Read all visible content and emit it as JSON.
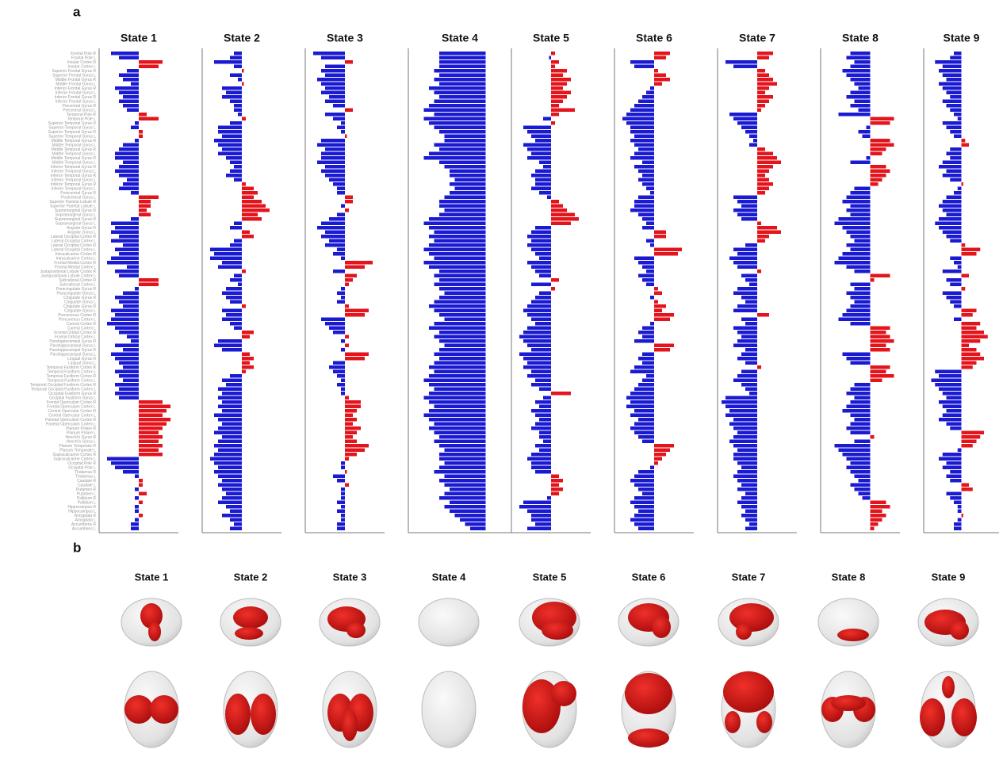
{
  "panel_labels": [
    "a",
    "b"
  ],
  "brain_maps": {
    "titles": [
      "State 1",
      "State 2",
      "State 3",
      "State 4",
      "State 5",
      "State 6",
      "State 7",
      "State 8",
      "State 9"
    ]
  },
  "chart_data": [
    {
      "type": "bar",
      "title": "State 1",
      "xlim": [
        -1,
        1
      ],
      "positive_color": "#e3141b",
      "negative_color": "#1a1ad2",
      "categories": [
        "Frontal Pole R",
        "Frontal Pole L",
        "Insular Cortex R",
        "Insular Cortex L",
        "Superior Frontal Gyrus R",
        "Superior Frontal Gyrus L",
        "Middle Frontal Gyrus R",
        "Middle Frontal Gyrus L",
        "Inferior Frontal Gyrus R",
        "Inferior Frontal Gyrus L",
        "Inferior Frontal Gyrus R",
        "Inferior Frontal Gyrus L",
        "Precentral Gyrus R",
        "Precentral Gyrus L",
        "Temporal Pole R",
        "Temporal Pole L",
        "Superior Temporal Gyrus R",
        "Superior Temporal Gyrus L",
        "Superior Temporal Gyrus R",
        "Superior Temporal Gyrus L",
        "Middle Temporal Gyrus R",
        "Middle Temporal Gyrus L",
        "Middle Temporal Gyrus R",
        "Middle Temporal Gyrus L",
        "Middle Temporal Gyrus R",
        "Middle Temporal Gyrus L",
        "Inferior Temporal Gyrus R",
        "Inferior Temporal Gyrus L",
        "Inferior Temporal Gyrus R",
        "Inferior Temporal Gyrus L",
        "Inferior Temporal Gyrus R",
        "Inferior Temporal Gyrus L",
        "Postcentral Gyrus R",
        "Postcentral Gyrus L",
        "Superior Parietal Lobule R",
        "Superior Parietal Lobule L",
        "Supramarginal Gyrus R",
        "Supramarginal Gyrus L",
        "Supramarginal Gyrus R",
        "Supramarginal Gyrus L",
        "Angular Gyrus R",
        "Angular Gyrus L",
        "Lateral Occipital Cortex R",
        "Lateral Occipital Cortex L",
        "Lateral Occipital Cortex R",
        "Lateral Occipital Cortex L",
        "Intracalcarine Cortex R",
        "Intracalcarine Cortex L",
        "Frontal Medial Cortex R",
        "Frontal Medial Cortex L",
        "Juxtapositional Lobule Cortex R",
        "Juxtapositional Lobule Cortex L",
        "Subcallosal Cortex R",
        "Subcallosal Cortex L",
        "Paracingulate Gyrus R",
        "Paracingulate Gyrus L",
        "Cingulate Gyrus R",
        "Cingulate Gyrus L",
        "Cingulate Gyrus R",
        "Cingulate Gyrus L",
        "Precuneous Cortex R",
        "Precuneous Cortex L",
        "Cuneal Cortex R",
        "Cuneal Cortex L",
        "Frontal Orbital Cortex R",
        "Frontal Orbital Cortex L",
        "Parahippocampal Gyrus R",
        "Parahippocampal Gyrus L",
        "Parahippocampal Gyrus R",
        "Parahippocampal Gyrus L",
        "Lingual Gyrus R",
        "Lingual Gyrus L",
        "Temporal Fusiform Cortex R",
        "Temporal Fusiform Cortex L",
        "Temporal Fusiform Cortex R",
        "Temporal Fusiform Cortex L",
        "Temporal Occipital Fusiform Cortex R",
        "Temporal Occipital Fusiform Cortex L",
        "Occipital Fusiform Gyrus R",
        "Occipital Fusiform Gyrus L",
        "Frontal Operculum Cortex R",
        "Frontal Operculum Cortex L",
        "Central Opercular Cortex R",
        "Central Opercular Cortex L",
        "Parietal Operculum Cortex R",
        "Parietal Operculum Cortex L",
        "Planum Polare R",
        "Planum Polare L",
        "Heschl's Gyrus R",
        "Heschl's Gyrus L",
        "Planum Temporale R",
        "Planum Temporale L",
        "Supracalcarine Cortex R",
        "Supracalcarine Cortex L",
        "Occipital Pole R",
        "Occipital Pole L",
        "Thalamus R",
        "Thalamus L",
        "Caudate R",
        "Caudate L",
        "Putamen R",
        "Putamen L",
        "Pallidum R",
        "Pallidum L",
        "Hippocampus R",
        "Hippocampus L",
        "Amygdala R",
        "Amygdala L",
        "Accumbens R",
        "Accumbens L"
      ],
      "values": [
        -0.7,
        -0.5,
        0.6,
        0.5,
        -0.3,
        -0.5,
        -0.4,
        -0.2,
        -0.6,
        -0.5,
        -0.4,
        -0.5,
        -0.4,
        -0.3,
        0.2,
        0.5,
        -0.1,
        -0.2,
        0.1,
        0.1,
        -0.1,
        -0.4,
        -0.5,
        -0.6,
        -0.6,
        -0.4,
        -0.5,
        -0.6,
        -0.5,
        -0.3,
        -0.4,
        -0.5,
        -0.2,
        0.5,
        0.3,
        0.3,
        0.2,
        0.3,
        -0.2,
        -0.7,
        -0.6,
        -0.7,
        -0.5,
        -0.7,
        -0.4,
        -0.6,
        -0.5,
        -0.7,
        -0.8,
        -0.3,
        -0.6,
        -0.5,
        0.5,
        0.5,
        -0.1,
        -0.4,
        -0.6,
        -0.5,
        -0.4,
        -0.7,
        -0.6,
        -0.7,
        -0.8,
        -0.6,
        -0.5,
        -0.3,
        -0.2,
        -0.6,
        -0.4,
        -0.7,
        -0.6,
        -0.5,
        -0.4,
        -0.6,
        -0.5,
        -0.4,
        -0.6,
        -0.5,
        -0.6,
        -0.5,
        0.6,
        0.8,
        0.7,
        0.6,
        0.8,
        0.7,
        0.6,
        0.5,
        0.6,
        0.5,
        0.6,
        0.5,
        0.6,
        -0.8,
        -0.7,
        -0.6,
        -0.4,
        -0.1,
        0.1,
        0.1,
        -0.1,
        0.2,
        -0.1,
        0.1,
        -0.1,
        -0.1,
        0.1,
        -0.1,
        -0.2,
        -0.2
      ]
    },
    {
      "type": "bar",
      "title": "State 2",
      "xlim": [
        -1,
        1
      ],
      "positive_color": "#e3141b",
      "negative_color": "#1a1ad2",
      "values": [
        -0.2,
        -0.3,
        -0.7,
        -0.2,
        0.05,
        -0.3,
        -0.1,
        0.05,
        -0.5,
        -0.4,
        -0.5,
        -0.3,
        -0.2,
        -0.2,
        -0.1,
        0.1,
        -0.3,
        -0.6,
        -0.6,
        -0.5,
        -0.7,
        -0.6,
        -0.5,
        -0.6,
        -0.4,
        -0.3,
        -0.2,
        -0.3,
        -0.4,
        -0.2,
        0.1,
        0.3,
        0.4,
        0.3,
        0.5,
        0.6,
        0.7,
        0.4,
        0.5,
        -0.2,
        -0.3,
        0.2,
        0.3,
        -0.2,
        -0.3,
        -0.8,
        -0.7,
        -0.8,
        -0.5,
        -0.6,
        0.1,
        -0.2,
        -0.3,
        -0.1,
        -0.4,
        -0.5,
        -0.4,
        -0.3,
        0.1,
        -0.5,
        -0.4,
        -0.5,
        -0.3,
        -0.2,
        0.3,
        0.2,
        -0.6,
        -0.7,
        -0.5,
        0.2,
        0.3,
        0.2,
        0.3,
        0.1,
        -0.3,
        -0.5,
        -0.4,
        -0.6,
        -0.5,
        -0.6,
        -0.5,
        -0.6,
        -0.5,
        -0.7,
        -0.6,
        -0.5,
        -0.6,
        -0.7,
        -0.5,
        -0.6,
        -0.7,
        -0.6,
        -0.7,
        -0.8,
        -0.7,
        -0.6,
        -0.7,
        -0.6,
        -0.5,
        -0.6,
        -0.5,
        -0.4,
        -0.5,
        -0.6,
        -0.4,
        -0.3,
        -0.5,
        -0.3,
        -0.2,
        -0.3
      ]
    },
    {
      "type": "bar",
      "title": "State 3",
      "xlim": [
        -1,
        1
      ],
      "positive_color": "#e3141b",
      "negative_color": "#1a1ad2",
      "values": [
        -0.8,
        -0.6,
        0.2,
        -0.5,
        -0.6,
        -0.5,
        -0.7,
        -0.6,
        -0.5,
        -0.6,
        -0.4,
        -0.5,
        -0.3,
        0.2,
        -0.5,
        -0.3,
        -0.1,
        -0.2,
        -0.1,
        0.05,
        -0.6,
        -0.7,
        -0.5,
        -0.6,
        -0.6,
        -0.7,
        -0.5,
        -0.6,
        -0.5,
        -0.4,
        -0.3,
        -0.2,
        -0.2,
        0.2,
        0.2,
        -0.1,
        0.1,
        -0.2,
        -0.4,
        -0.6,
        -0.7,
        -0.5,
        -0.6,
        -0.4,
        -0.5,
        -0.2,
        -0.3,
        -0.1,
        0.7,
        0.5,
        -0.3,
        0.3,
        0.2,
        0.1,
        -0.1,
        -0.2,
        -0.1,
        -0.2,
        0.1,
        0.6,
        0.5,
        -0.6,
        -0.5,
        -0.4,
        -0.3,
        0.1,
        -0.1,
        0.1,
        -0.1,
        0.6,
        0.5,
        -0.3,
        -0.4,
        -0.3,
        -0.2,
        -0.1,
        -0.2,
        -0.1,
        -0.1,
        0.1,
        0.4,
        0.4,
        0.3,
        0.2,
        0.3,
        0.2,
        0.4,
        0.3,
        0.2,
        0.3,
        0.6,
        0.5,
        0.3,
        0.1,
        -0.1,
        -0.1,
        0.05,
        -0.3,
        -0.2,
        0.1,
        -0.1,
        -0.1,
        -0.1,
        -0.2,
        -0.1,
        -0.2,
        -0.1,
        -0.1,
        -0.2,
        -0.2
      ]
    },
    {
      "type": "bar",
      "title": "State 4",
      "xlim": [
        -1.5,
        0.5
      ],
      "positive_color": "#e3141b",
      "negative_color": "#1a1ad2",
      "values": [
        -0.9,
        -0.9,
        -0.9,
        -0.9,
        -1.0,
        -0.9,
        -1.0,
        -0.9,
        -1.1,
        -1.0,
        -0.9,
        -1.0,
        -1.1,
        -1.2,
        -1.0,
        -1.2,
        -1.1,
        -1.0,
        -0.9,
        -0.8,
        -0.8,
        -1.0,
        -0.9,
        -1.1,
        -1.2,
        -0.9,
        -0.8,
        -0.7,
        -0.7,
        -0.6,
        -0.7,
        -0.6,
        -0.7,
        -0.8,
        -0.9,
        -0.9,
        -0.8,
        -0.9,
        -1.1,
        -1.2,
        -1.1,
        -1.0,
        -1.1,
        -1.0,
        -1.1,
        -1.2,
        -1.1,
        -1.0,
        -1.2,
        -1.1,
        -0.9,
        -1.0,
        -0.9,
        -1.0,
        -0.9,
        -0.8,
        -0.9,
        -1.0,
        -1.1,
        -1.0,
        -0.9,
        -0.8,
        -1.0,
        -1.1,
        -0.9,
        -1.0,
        -0.9,
        -0.8,
        -0.9,
        -1.0,
        -0.9,
        -1.0,
        -1.1,
        -1.0,
        -1.1,
        -1.2,
        -1.1,
        -1.0,
        -1.1,
        -1.2,
        -1.1,
        -1.0,
        -1.1,
        -1.2,
        -1.1,
        -1.0,
        -1.1,
        -1.0,
        -0.9,
        -1.0,
        -0.9,
        -0.8,
        -0.9,
        -0.9,
        -0.8,
        -0.9,
        -1.0,
        -0.8,
        -0.9,
        -0.8,
        -0.7,
        -0.8,
        -0.9,
        -0.7,
        -0.8,
        -0.7,
        -0.6,
        -0.5,
        -0.4,
        -0.3
      ]
    },
    {
      "type": "bar",
      "title": "State 5",
      "xlim": [
        -1,
        1
      ],
      "positive_color": "#e3141b",
      "negative_color": "#1a1ad2",
      "values": [
        0.1,
        -0.05,
        0.2,
        0.1,
        0.4,
        0.3,
        0.5,
        0.4,
        0.3,
        0.5,
        0.4,
        0.3,
        0.2,
        0.6,
        0.2,
        -0.2,
        0.1,
        -0.7,
        -0.6,
        -0.5,
        -0.4,
        -0.7,
        -0.6,
        -0.5,
        -0.6,
        -0.3,
        -0.2,
        -0.4,
        -0.5,
        -0.4,
        -0.4,
        -0.5,
        -0.3,
        -0.1,
        0.2,
        0.3,
        0.4,
        0.6,
        0.7,
        0.5,
        -0.4,
        -0.5,
        -0.6,
        -0.5,
        -0.6,
        -0.5,
        -0.4,
        -0.3,
        -0.6,
        -0.5,
        -0.4,
        -0.3,
        0.2,
        -0.5,
        0.1,
        -0.3,
        -0.4,
        -0.5,
        -0.6,
        -0.7,
        -0.6,
        -0.5,
        -0.4,
        -0.6,
        -0.7,
        -0.8,
        -0.7,
        -0.6,
        -0.5,
        -0.8,
        -0.7,
        -0.6,
        -0.7,
        -0.5,
        -0.6,
        -0.4,
        -0.5,
        -0.3,
        0.5,
        -0.2,
        -0.4,
        -0.3,
        -0.5,
        -0.4,
        -0.3,
        -0.4,
        -0.5,
        -0.3,
        -0.3,
        -0.2,
        -0.4,
        -0.3,
        -0.5,
        -0.6,
        -0.5,
        -0.5,
        -0.4,
        0.2,
        0.3,
        0.2,
        0.3,
        0.2,
        -0.1,
        -0.7,
        -0.8,
        -0.6,
        -0.5,
        -0.5,
        -0.4,
        -0.6
      ]
    },
    {
      "type": "bar",
      "title": "State 6",
      "xlim": [
        -1,
        1
      ],
      "positive_color": "#e3141b",
      "negative_color": "#1a1ad2",
      "values": [
        0.4,
        0.3,
        -0.6,
        -0.5,
        0.1,
        0.3,
        0.4,
        0.2,
        -0.1,
        -0.2,
        -0.3,
        -0.4,
        -0.5,
        -0.6,
        -0.7,
        -0.8,
        -0.7,
        -0.6,
        -0.6,
        -0.5,
        -0.6,
        -0.5,
        -0.4,
        -0.5,
        -0.6,
        -0.3,
        -0.5,
        -0.4,
        -0.3,
        -0.4,
        -0.3,
        -0.2,
        -0.1,
        -0.4,
        -0.5,
        -0.5,
        -0.6,
        -0.4,
        -0.3,
        -0.2,
        -0.3,
        0.3,
        0.3,
        -0.2,
        -0.1,
        0.7,
        0.6,
        -0.5,
        -0.4,
        -0.3,
        -0.2,
        -0.4,
        -0.3,
        -0.2,
        0.1,
        0.2,
        -0.1,
        0.1,
        0.3,
        0.2,
        0.5,
        0.4,
        -0.1,
        -0.3,
        -0.4,
        -0.3,
        -0.5,
        0.5,
        0.4,
        -0.3,
        -0.4,
        -0.3,
        -0.5,
        -0.6,
        -0.2,
        -0.3,
        -0.4,
        -0.5,
        -0.6,
        -0.7,
        -0.6,
        -0.7,
        -0.5,
        -0.6,
        -0.4,
        -0.5,
        -0.6,
        -0.5,
        -0.4,
        -0.3,
        0.5,
        0.4,
        0.3,
        0.2,
        0.1,
        -0.1,
        -0.4,
        -0.5,
        -0.6,
        -0.5,
        -0.4,
        -0.3,
        -0.5,
        -0.6,
        -0.5,
        -0.4,
        -0.5,
        -0.6,
        -0.5,
        -0.4
      ]
    },
    {
      "type": "bar",
      "title": "State 7",
      "xlim": [
        -1,
        1
      ],
      "positive_color": "#e3141b",
      "negative_color": "#1a1ad2",
      "values": [
        0.4,
        0.3,
        -0.8,
        -0.6,
        0.2,
        0.3,
        0.4,
        0.5,
        0.3,
        0.2,
        0.4,
        0.3,
        0.2,
        0.1,
        -0.7,
        -0.6,
        -0.5,
        -0.4,
        -0.3,
        -0.2,
        -0.1,
        -0.2,
        0.2,
        0.4,
        0.5,
        0.6,
        0.4,
        0.3,
        0.2,
        0.3,
        0.4,
        0.3,
        0.2,
        -0.6,
        -0.5,
        -0.4,
        -0.6,
        -0.5,
        -0.4,
        0.1,
        0.5,
        0.6,
        0.3,
        0.2,
        -0.3,
        -0.6,
        -0.5,
        -0.7,
        -0.6,
        -0.5,
        0.1,
        -0.4,
        -0.3,
        -0.2,
        -0.5,
        -0.6,
        -0.4,
        -0.3,
        -0.5,
        -0.6,
        0.3,
        -0.4,
        -0.3,
        -0.6,
        -0.5,
        -0.4,
        -0.5,
        -0.6,
        -0.3,
        -0.4,
        -0.5,
        -0.3,
        0.1,
        -0.4,
        -0.5,
        -0.6,
        -0.4,
        -0.3,
        -0.2,
        -0.8,
        -0.9,
        -0.8,
        -0.7,
        -0.8,
        -0.6,
        -0.7,
        -0.6,
        -0.5,
        -0.6,
        -0.7,
        -0.6,
        -0.5,
        -0.6,
        -0.6,
        -0.5,
        -0.4,
        -0.5,
        -0.6,
        -0.5,
        -0.4,
        -0.5,
        -0.3,
        -0.4,
        -0.5,
        -0.4,
        -0.3,
        -0.4,
        -0.3,
        -0.2,
        -0.3
      ]
    },
    {
      "type": "bar",
      "title": "State 8",
      "xlim": [
        -1.25,
        0.75
      ],
      "positive_color": "#e3141b",
      "negative_color": "#1a1ad2",
      "values": [
        -0.5,
        -0.6,
        -0.4,
        -0.5,
        -0.7,
        -0.6,
        -0.5,
        -0.4,
        -0.3,
        -0.5,
        -0.6,
        -0.4,
        -0.5,
        -0.3,
        -0.8,
        0.6,
        0.5,
        -0.1,
        -0.3,
        -0.2,
        0.5,
        0.6,
        0.4,
        0.3,
        -0.1,
        -0.5,
        0.4,
        0.5,
        0.4,
        0.3,
        0.2,
        -0.4,
        -0.5,
        -0.6,
        -0.7,
        -0.5,
        -0.6,
        -0.5,
        -0.8,
        -0.9,
        -0.7,
        -0.6,
        -0.5,
        -0.4,
        -0.6,
        -0.5,
        -0.7,
        -0.8,
        -0.9,
        -0.6,
        -0.4,
        0.5,
        0.1,
        -0.5,
        -0.4,
        -0.6,
        -0.5,
        -0.4,
        -0.5,
        -0.6,
        -0.7,
        -0.8,
        -0.5,
        0.5,
        0.4,
        0.5,
        0.6,
        0.4,
        0.5,
        -0.7,
        -0.6,
        -0.5,
        0.5,
        0.4,
        0.6,
        0.3,
        -0.4,
        -0.5,
        -0.6,
        -0.4,
        -0.5,
        -0.6,
        -0.7,
        -0.5,
        -0.4,
        -0.5,
        -0.6,
        -0.5,
        0.1,
        -0.4,
        -0.9,
        -0.8,
        -0.7,
        -0.6,
        -0.5,
        -0.6,
        -0.5,
        -0.4,
        -0.3,
        -0.5,
        -0.4,
        -0.3,
        -0.2,
        0.4,
        0.5,
        0.3,
        0.4,
        0.3,
        0.2,
        0.1
      ]
    },
    {
      "type": "bar",
      "title": "State 9",
      "xlim": [
        -1,
        1
      ],
      "positive_color": "#e3141b",
      "negative_color": "#1a1ad2",
      "values": [
        -0.2,
        -0.3,
        -0.7,
        -0.5,
        -0.6,
        -0.5,
        -0.4,
        -0.6,
        -0.5,
        -0.4,
        -0.3,
        -0.5,
        -0.4,
        -0.3,
        -0.2,
        -0.1,
        -0.5,
        -0.4,
        -0.3,
        -0.2,
        0.1,
        0.2,
        -0.3,
        -0.4,
        -0.3,
        -0.5,
        -0.6,
        -0.4,
        -0.5,
        -0.3,
        0.05,
        -0.1,
        -0.2,
        -0.4,
        -0.5,
        -0.6,
        -0.5,
        -0.4,
        -0.6,
        -0.7,
        -0.6,
        -0.5,
        -0.4,
        -0.3,
        0.1,
        0.5,
        0.4,
        -0.3,
        -0.2,
        -0.1,
        -0.5,
        0.2,
        -0.4,
        -0.3,
        0.1,
        -0.5,
        -0.4,
        -0.3,
        -0.2,
        0.4,
        0.3,
        -0.2,
        0.5,
        0.4,
        0.6,
        0.7,
        0.5,
        0.2,
        0.4,
        0.5,
        0.6,
        0.4,
        0.3,
        -0.7,
        -0.6,
        -0.8,
        -0.7,
        -0.6,
        -0.5,
        -0.4,
        -0.6,
        -0.5,
        -0.4,
        -0.5,
        -0.6,
        -0.4,
        -0.3,
        0.6,
        0.5,
        0.4,
        0.3,
        -0.1,
        -0.5,
        -0.6,
        -0.4,
        -0.5,
        -0.3,
        -0.4,
        -0.3,
        0.2,
        0.3,
        -0.4,
        -0.3,
        -0.2,
        -0.1,
        -0.1,
        0.05,
        -0.1,
        -0.2,
        -0.2
      ]
    }
  ]
}
